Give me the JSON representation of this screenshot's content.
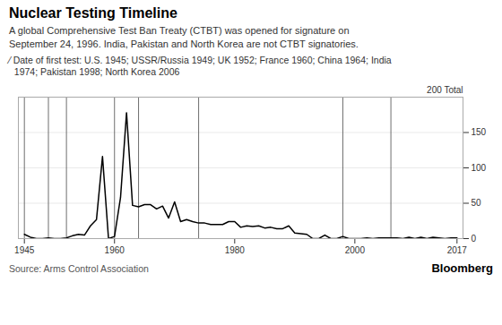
{
  "chart_data": {
    "type": "line",
    "title": "Nuclear Testing Timeline",
    "subtitle": "A global Comprehensive Test Ban Treaty (CTBT) was opened for signature on\nSeptember 24, 1996. India, Pakistan and North Korea are not CTBT signatories.",
    "note": "⁄ Date of first test: U.S. 1945; USSR/Russia 1949; UK 1952; France 1960; China 1964; India\n  1974; Pakistan 1998; North Korea 2006",
    "source": "Source: Arms Control Association",
    "annotations": [
      "200 Total",
      "Bloomberg"
    ],
    "x": [
      1945,
      1946,
      1947,
      1948,
      1949,
      1950,
      1951,
      1952,
      1953,
      1954,
      1955,
      1956,
      1957,
      1958,
      1959,
      1960,
      1961,
      1962,
      1963,
      1964,
      1965,
      1966,
      1967,
      1968,
      1969,
      1970,
      1971,
      1972,
      1973,
      1974,
      1975,
      1976,
      1977,
      1978,
      1979,
      1980,
      1981,
      1982,
      1983,
      1984,
      1985,
      1986,
      1987,
      1988,
      1989,
      1990,
      1991,
      1992,
      1993,
      1994,
      1995,
      1996,
      1997,
      1998,
      1999,
      2000,
      2001,
      2002,
      2003,
      2004,
      2005,
      2006,
      2007,
      2008,
      2009,
      2010,
      2011,
      2012,
      2013,
      2014,
      2015,
      2016,
      2017
    ],
    "values": [
      6,
      2,
      0,
      0,
      1,
      0,
      0,
      1,
      4,
      6,
      5,
      18,
      27,
      116,
      0,
      3,
      58,
      178,
      47,
      45,
      48,
      48,
      42,
      46,
      29,
      52,
      24,
      27,
      24,
      22,
      22,
      20,
      20,
      20,
      24,
      24,
      16,
      18,
      17,
      18,
      15,
      16,
      14,
      14,
      18,
      8,
      7,
      6,
      0,
      0,
      5,
      0,
      0,
      3,
      0,
      0,
      0,
      1,
      0,
      1,
      1,
      1,
      1,
      0,
      2,
      0,
      2,
      0,
      2,
      1,
      0,
      1,
      1
    ],
    "color": "#000000",
    "vlines": {
      "values": [
        1945,
        1949,
        1952,
        1960,
        1964,
        1974,
        1998,
        2006
      ],
      "color": "#555555"
    },
    "xlim": [
      1944,
      2018
    ],
    "ylim": [
      0,
      200
    ],
    "xticks": [
      1945,
      1960,
      1980,
      2000,
      2017
    ],
    "yticks": [
      0,
      50,
      100,
      150
    ],
    "grid": true
  }
}
